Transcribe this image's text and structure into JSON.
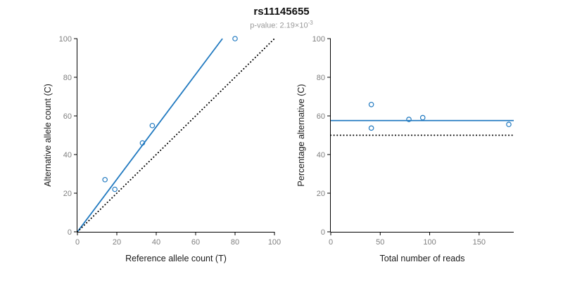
{
  "header": {
    "title": "rs11145655",
    "subtitle_base": "p-value: 2.19×10",
    "subtitle_exponent": "-3"
  },
  "colors": {
    "accent_blue": "#2079C0",
    "reference_line": "#000000",
    "tick_label": "#7f7f7f",
    "subtitle_gray": "#999999"
  },
  "chart_data": [
    {
      "type": "scatter",
      "name": "allele-count-scatter",
      "xlabel": "Reference allele count (T)",
      "ylabel": "Alternative allele count (C)",
      "xlim": [
        0,
        100
      ],
      "ylim": [
        0,
        100
      ],
      "xticks": [
        0,
        20,
        40,
        60,
        80,
        100
      ],
      "yticks": [
        0,
        20,
        40,
        60,
        80,
        100
      ],
      "grid": false,
      "points": [
        [
          14,
          27
        ],
        [
          19,
          22
        ],
        [
          33,
          46
        ],
        [
          38,
          55
        ],
        [
          80,
          100
        ]
      ],
      "lines": [
        {
          "name": "fit-line",
          "x1": 0,
          "y1": 0,
          "x2": 73.6,
          "y2": 100,
          "color": "accent",
          "style": "solid"
        },
        {
          "name": "identity-line",
          "x1": 0,
          "y1": 0,
          "x2": 100,
          "y2": 100,
          "color": "black",
          "style": "dotted"
        }
      ]
    },
    {
      "type": "scatter",
      "name": "percentage-vs-reads-scatter",
      "xlabel": "Total number of reads",
      "ylabel": "Percentage alternative (C)",
      "xlim": [
        0,
        185
      ],
      "ylim": [
        0,
        100
      ],
      "xticks": [
        0,
        50,
        100,
        150
      ],
      "yticks": [
        0,
        20,
        40,
        60,
        80,
        100
      ],
      "grid": false,
      "points": [
        [
          41,
          65.9
        ],
        [
          41,
          53.7
        ],
        [
          79,
          58.2
        ],
        [
          93,
          59.1
        ],
        [
          180,
          55.6
        ]
      ],
      "lines": [
        {
          "name": "mean-percentage-line",
          "x1": 0,
          "y1": 57.6,
          "x2": 185,
          "y2": 57.6,
          "color": "accent",
          "style": "solid"
        },
        {
          "name": "fifty-percent-line",
          "x1": 0,
          "y1": 50,
          "x2": 185,
          "y2": 50,
          "color": "black",
          "style": "dotted"
        }
      ]
    }
  ]
}
